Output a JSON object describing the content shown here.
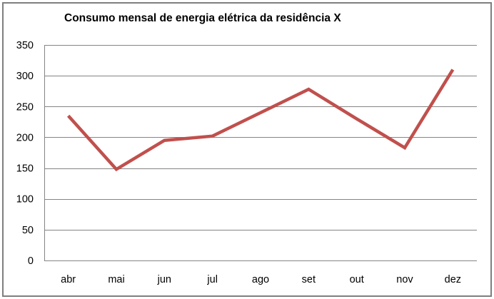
{
  "chart_data": {
    "type": "line",
    "title": "Consumo mensal de energia elétrica da residência X",
    "categories": [
      "abr",
      "mai",
      "jun",
      "jul",
      "ago",
      "set",
      "out",
      "nov",
      "dez"
    ],
    "values": [
      235,
      148,
      195,
      202,
      240,
      278,
      230,
      183,
      310
    ],
    "xlabel": "",
    "ylabel": "",
    "ylim": [
      0,
      350
    ],
    "yticks": [
      0,
      50,
      100,
      150,
      200,
      250,
      300,
      350
    ],
    "grid": true,
    "legend": "none",
    "colors": {
      "line": "#C0504D",
      "gridline": "#848484",
      "text": "#000000",
      "frame_border": "#7F7F7F",
      "background": "#FFFFFF"
    }
  }
}
